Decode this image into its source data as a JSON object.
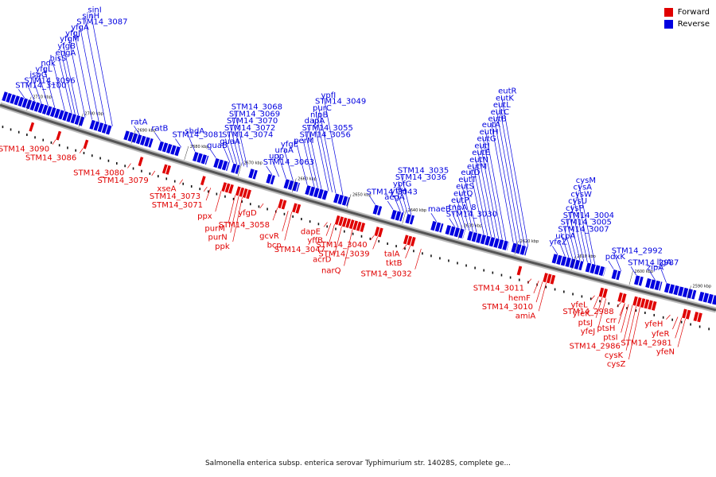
{
  "legend": [
    {
      "label": "Forward",
      "color": "#e00000"
    },
    {
      "label": "Reverse",
      "color": "#0000e0"
    }
  ],
  "caption": "Salmonella enterica subsp. enterica serovar Typhimurium str. 14028S, complete ge...",
  "ticks": [
    {
      "pos": 2710,
      "label": "2710 kbp"
    },
    {
      "pos": 2700,
      "label": "2700 kbp"
    },
    {
      "pos": 2690,
      "label": "2690 kbp"
    },
    {
      "pos": 2680,
      "label": "2680 kbp"
    },
    {
      "pos": 2670,
      "label": "2670 kbp"
    },
    {
      "pos": 2660,
      "label": "2660 kbp"
    },
    {
      "pos": 2650,
      "label": "2650 kbp"
    },
    {
      "pos": 2640,
      "label": "2640 kbp"
    },
    {
      "pos": 2630,
      "label": "2630 kbp"
    },
    {
      "pos": 2620,
      "label": "2620 kbp"
    },
    {
      "pos": 2610,
      "label": "2610 kbp"
    },
    {
      "pos": 2600,
      "label": "2600 kbp"
    },
    {
      "pos": 2590,
      "label": "2590 kbp"
    }
  ],
  "reverse_labels": [
    {
      "text": "STM14_3100",
      "at": 0.03
    },
    {
      "text": "STM14_3096",
      "at": 0.045
    },
    {
      "text": "ispG",
      "at": 0.055
    },
    {
      "text": "yfgL",
      "at": 0.065
    },
    {
      "text": "ndk",
      "at": 0.075
    },
    {
      "text": "hisS",
      "at": 0.09
    },
    {
      "text": "engA",
      "at": 0.1
    },
    {
      "text": "yfgB",
      "at": 0.105
    },
    {
      "text": "yfgM",
      "at": 0.11
    },
    {
      "text": "yfgJ",
      "at": 0.12
    },
    {
      "text": "yfgA",
      "at": 0.13
    },
    {
      "text": "STM14_3087",
      "at": 0.14
    },
    {
      "text": "sinH",
      "at": 0.15
    },
    {
      "text": "sinI",
      "at": 0.16
    },
    {
      "text": "ratA",
      "at": 0.2
    },
    {
      "text": "ratB",
      "at": 0.23
    },
    {
      "text": "STM14_3081",
      "at": 0.26
    },
    {
      "text": "shdA",
      "at": 0.28
    },
    {
      "text": "guaB",
      "at": 0.31
    },
    {
      "text": "guaA",
      "at": 0.33
    },
    {
      "text": "STM14_3074",
      "at": 0.335
    },
    {
      "text": "STM14_3072",
      "at": 0.34
    },
    {
      "text": "STM14_3070",
      "at": 0.345
    },
    {
      "text": "STM14_3069",
      "at": 0.35
    },
    {
      "text": "STM14_3068",
      "at": 0.355
    },
    {
      "text": "STM14_3063",
      "at": 0.39
    },
    {
      "text": "upp",
      "at": 0.4
    },
    {
      "text": "uraA",
      "at": 0.41
    },
    {
      "text": "yfgE",
      "at": 0.42
    },
    {
      "text": "perM",
      "at": 0.44
    },
    {
      "text": "STM14_3056",
      "at": 0.45
    },
    {
      "text": "STM14_3055",
      "at": 0.455
    },
    {
      "text": "dapA",
      "at": 0.46
    },
    {
      "text": "nlpB",
      "at": 0.47
    },
    {
      "text": "purC",
      "at": 0.475
    },
    {
      "text": "STM14_3049",
      "at": 0.48
    },
    {
      "text": "ypfI",
      "at": 0.49
    },
    {
      "text": "STM14_3043",
      "at": 0.535
    },
    {
      "text": "aegA",
      "at": 0.56
    },
    {
      "text": "yffH",
      "at": 0.57
    },
    {
      "text": "ypfG",
      "at": 0.575
    },
    {
      "text": "STM14_3036",
      "at": 0.58
    },
    {
      "text": "STM14_3035",
      "at": 0.585
    },
    {
      "text": "maeB",
      "at": 0.62
    },
    {
      "text": "STM14_3030",
      "at": 0.645
    },
    {
      "text": "tnpA_8",
      "at": 0.65
    },
    {
      "text": "eutP",
      "at": 0.655
    },
    {
      "text": "eutQ",
      "at": 0.66
    },
    {
      "text": "eutS",
      "at": 0.665
    },
    {
      "text": "eutT",
      "at": 0.67
    },
    {
      "text": "eutD",
      "at": 0.675
    },
    {
      "text": "eutM",
      "at": 0.685
    },
    {
      "text": "eutN",
      "at": 0.69
    },
    {
      "text": "eutE",
      "at": 0.695
    },
    {
      "text": "eutJ",
      "at": 0.7
    },
    {
      "text": "eutG",
      "at": 0.705
    },
    {
      "text": "eutH",
      "at": 0.71
    },
    {
      "text": "eutA",
      "at": 0.715
    },
    {
      "text": "eutB",
      "at": 0.725
    },
    {
      "text": "eutC",
      "at": 0.73
    },
    {
      "text": "eutL",
      "at": 0.735
    },
    {
      "text": "eutK",
      "at": 0.74
    },
    {
      "text": "eutR",
      "at": 0.745
    },
    {
      "text": "STM14_3007",
      "at": 0.8
    },
    {
      "text": "STM14_3005",
      "at": 0.805
    },
    {
      "text": "STM14_3004",
      "at": 0.81
    },
    {
      "text": "cysP",
      "at": 0.815
    },
    {
      "text": "yfeZ",
      "at": 0.785
    },
    {
      "text": "cysU",
      "at": 0.82
    },
    {
      "text": "ucpA",
      "at": 0.795
    },
    {
      "text": "cysW",
      "at": 0.825
    },
    {
      "text": "cysA",
      "at": 0.83
    },
    {
      "text": "cysM",
      "at": 0.835
    },
    {
      "text": "STM14_2992",
      "at": 0.87
    },
    {
      "text": "STM14_2987",
      "at": 0.89
    },
    {
      "text": "pdxK",
      "at": 0.86
    },
    {
      "text": "zipA",
      "at": 0.915
    },
    {
      "text": "ligA",
      "at": 0.93
    }
  ],
  "forward_labels": [
    {
      "text": "STM14_3090",
      "at": 0.09
    },
    {
      "text": "STM14_3086",
      "at": 0.13
    },
    {
      "text": "STM14_3080",
      "at": 0.2
    },
    {
      "text": "STM14_3079",
      "at": 0.235
    },
    {
      "text": "xseA",
      "at": 0.275
    },
    {
      "text": "STM14_3073",
      "at": 0.31
    },
    {
      "text": "STM14_3071",
      "at": 0.315
    },
    {
      "text": "ppx",
      "at": 0.33
    },
    {
      "text": "purM",
      "at": 0.35
    },
    {
      "text": "purN",
      "at": 0.355
    },
    {
      "text": "ppk",
      "at": 0.36
    },
    {
      "text": "yfgD",
      "at": 0.39
    },
    {
      "text": "STM14_3058",
      "at": 0.41
    },
    {
      "text": "gcvR",
      "at": 0.425
    },
    {
      "text": "bcp",
      "at": 0.43
    },
    {
      "text": "dapE",
      "at": 0.48
    },
    {
      "text": "acrD",
      "at": 0.5
    },
    {
      "text": "yffB",
      "at": 0.485
    },
    {
      "text": "narQ",
      "at": 0.515
    },
    {
      "text": "STM14_3040",
      "at": 0.545
    },
    {
      "text": "STM14_3047",
      "at": 0.49
    },
    {
      "text": "STM14_3039",
      "at": 0.55
    },
    {
      "text": "talA",
      "at": 0.59
    },
    {
      "text": "tktB",
      "at": 0.595
    },
    {
      "text": "STM14_3032",
      "at": 0.61
    },
    {
      "text": "STM14_3011",
      "at": 0.76
    },
    {
      "text": "hemF",
      "at": 0.77
    },
    {
      "text": "amiA",
      "at": 0.78
    },
    {
      "text": "STM14_3010",
      "at": 0.775
    },
    {
      "text": "yfeL",
      "at": 0.845
    },
    {
      "text": "yfeK",
      "at": 0.85
    },
    {
      "text": "ptsJ",
      "at": 0.855
    },
    {
      "text": "yfeJ",
      "at": 0.86
    },
    {
      "text": "crr",
      "at": 0.885
    },
    {
      "text": "ptsI",
      "at": 0.89
    },
    {
      "text": "cysZ",
      "at": 0.905
    },
    {
      "text": "cysK",
      "at": 0.9
    },
    {
      "text": "STM14_2986",
      "at": 0.895
    },
    {
      "text": "STM14_2988",
      "at": 0.88
    },
    {
      "text": "ptsH",
      "at": 0.885
    },
    {
      "text": "yfeN",
      "at": 0.965
    },
    {
      "text": "yfeR",
      "at": 0.955
    },
    {
      "text": "yfeH",
      "at": 0.945
    },
    {
      "text": "STM14_2981",
      "at": 0.96
    }
  ]
}
